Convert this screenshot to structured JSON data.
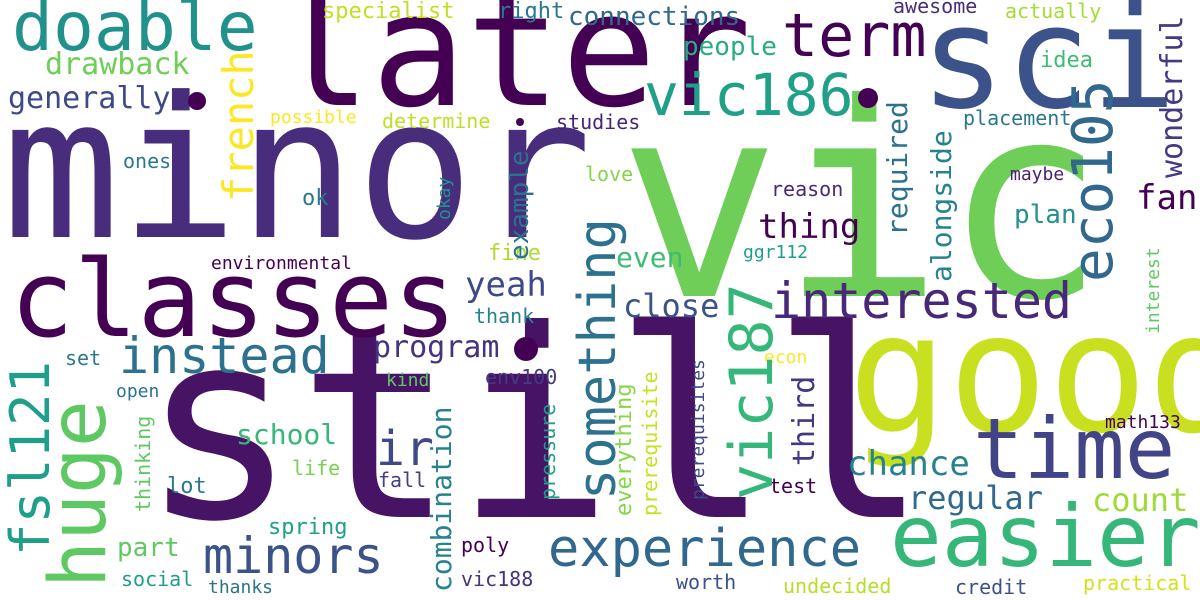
{
  "words": {
    "still": {
      "text": "still",
      "color": "#471365"
    },
    "vic": {
      "text": "vic",
      "color": "#6ece58"
    },
    "minor": {
      "text": "minor",
      "color": "#472d7b"
    },
    "later": {
      "text": "later",
      "color": "#440154"
    },
    "sci": {
      "text": "sci",
      "color": "#3b528b"
    },
    "good": {
      "text": "good",
      "color": "#c8e020"
    },
    "classes": {
      "text": "classes",
      "color": "#440154"
    },
    "doable": {
      "text": "doable",
      "color": "#21918c"
    },
    "term": {
      "text": "term",
      "color": "#440154"
    },
    "vic186": {
      "text": "vic186",
      "color": "#1fa187"
    },
    "time": {
      "text": "time",
      "color": "#414487"
    },
    "easier": {
      "text": "easier",
      "color": "#35b779"
    },
    "huge": {
      "text": "huge",
      "color": "#5ec962"
    },
    "fsl121": {
      "text": "fsl121",
      "color": "#1f9e89"
    },
    "instead": {
      "text": "instead",
      "color": "#2c728e"
    },
    "minors": {
      "text": "minors",
      "color": "#3b528b"
    },
    "experience": {
      "text": "experience",
      "color": "#31688e"
    },
    "interested": {
      "text": "interested",
      "color": "#482878"
    },
    "eco105": {
      "text": "eco105",
      "color": "#31688e"
    },
    "vic187": {
      "text": "vic187",
      "color": "#35b779"
    },
    "something": {
      "text": "something",
      "color": "#2c728e"
    },
    "french": {
      "text": "french",
      "color": "#fde725"
    },
    "generally": {
      "text": "generally",
      "color": "#3e4989"
    },
    "drawback": {
      "text": "drawback",
      "color": "#6ece58"
    },
    "ir": {
      "text": "ir",
      "color": "#3e4989"
    },
    "program": {
      "text": "program",
      "color": "#46327e"
    },
    "combination": {
      "text": "combination",
      "color": "#26828e"
    },
    "chance": {
      "text": "chance",
      "color": "#26828e"
    },
    "regular": {
      "text": "regular",
      "color": "#31688e"
    },
    "count": {
      "text": "count",
      "color": "#a0da39"
    },
    "wonderful": {
      "text": "wonderful",
      "color": "#443a83"
    },
    "fan": {
      "text": "fan",
      "color": "#440154"
    },
    "thing": {
      "text": "thing",
      "color": "#440154"
    },
    "yeah": {
      "text": "yeah",
      "color": "#3e4989"
    },
    "close": {
      "text": "close",
      "color": "#3b528b"
    },
    "school": {
      "text": "school",
      "color": "#35b779"
    },
    "third": {
      "text": "third",
      "color": "#453781"
    },
    "required": {
      "text": "required",
      "color": "#2c728e"
    },
    "alongside": {
      "text": "alongside",
      "color": "#26828e"
    },
    "plan": {
      "text": "plan",
      "color": "#21918c"
    },
    "people": {
      "text": "people",
      "color": "#26ad81"
    },
    "connections": {
      "text": "connections",
      "color": "#31688e"
    },
    "example": {
      "text": "example",
      "color": "#2c728e"
    },
    "even": {
      "text": "even",
      "color": "#3dbc74"
    },
    "part": {
      "text": "part",
      "color": "#5ec962"
    },
    "specialist": {
      "text": "specialist",
      "color": "#c2df23"
    },
    "right": {
      "text": "right",
      "color": "#2a788e"
    },
    "awesome": {
      "text": "awesome",
      "color": "#472d7b"
    },
    "actually": {
      "text": "actually",
      "color": "#a5db36"
    },
    "idea": {
      "text": "idea",
      "color": "#3dbc74"
    },
    "placement": {
      "text": "placement",
      "color": "#2a788e"
    },
    "possible": {
      "text": "possible",
      "color": "#fde725"
    },
    "determine": {
      "text": "determine",
      "color": "#bddf26"
    },
    "studies": {
      "text": "studies",
      "color": "#482475"
    },
    "ones": {
      "text": "ones",
      "color": "#2a788e"
    },
    "love": {
      "text": "love",
      "color": "#86d549"
    },
    "ok": {
      "text": "ok",
      "color": "#2a788e"
    },
    "okay": {
      "text": "okay",
      "color": "#21918c"
    },
    "reason": {
      "text": "reason",
      "color": "#482878"
    },
    "maybe": {
      "text": "maybe",
      "color": "#481f70"
    },
    "fine": {
      "text": "fine",
      "color": "#addc30"
    },
    "ggr112": {
      "text": "ggr112",
      "color": "#1f9e89"
    },
    "environmental": {
      "text": "environmental",
      "color": "#440154"
    },
    "interest": {
      "text": "interest",
      "color": "#5ec962"
    },
    "thank": {
      "text": "thank",
      "color": "#26828e"
    },
    "set": {
      "text": "set",
      "color": "#2a788e"
    },
    "kind": {
      "text": "kind",
      "color": "#5ec962"
    },
    "env100": {
      "text": "env100",
      "color": "#443a83"
    },
    "econ": {
      "text": "econ",
      "color": "#fde725"
    },
    "open": {
      "text": "open",
      "color": "#2c728e"
    },
    "pressure": {
      "text": "pressure",
      "color": "#1f9e89"
    },
    "everything": {
      "text": "everything",
      "color": "#86d549"
    },
    "prerequisite": {
      "text": "prerequisite",
      "color": "#c8e020"
    },
    "prerequisites": {
      "text": "prerequisites",
      "color": "#3e4989"
    },
    "thinking": {
      "text": "thinking",
      "color": "#5ec962"
    },
    "lot": {
      "text": "lot",
      "color": "#2a788e"
    },
    "life": {
      "text": "life",
      "color": "#7ad151"
    },
    "fall": {
      "text": "fall",
      "color": "#433e85"
    },
    "test": {
      "text": "test",
      "color": "#440154"
    },
    "math133": {
      "text": "math133",
      "color": "#440154"
    },
    "spring": {
      "text": "spring",
      "color": "#1f9e89"
    },
    "poly": {
      "text": "poly",
      "color": "#440154"
    },
    "social": {
      "text": "social",
      "color": "#1f9e89"
    },
    "vic188": {
      "text": "vic188",
      "color": "#46327e"
    },
    "thanks": {
      "text": "thanks",
      "color": "#2c728e"
    },
    "worth": {
      "text": "worth",
      "color": "#3b528b"
    },
    "undecided": {
      "text": "undecided",
      "color": "#b5de2b"
    },
    "credit": {
      "text": "credit",
      "color": "#3b528b"
    },
    "practical": {
      "text": "practical",
      "color": "#d2e21b"
    }
  },
  "dots": {
    "color": "#440154"
  }
}
